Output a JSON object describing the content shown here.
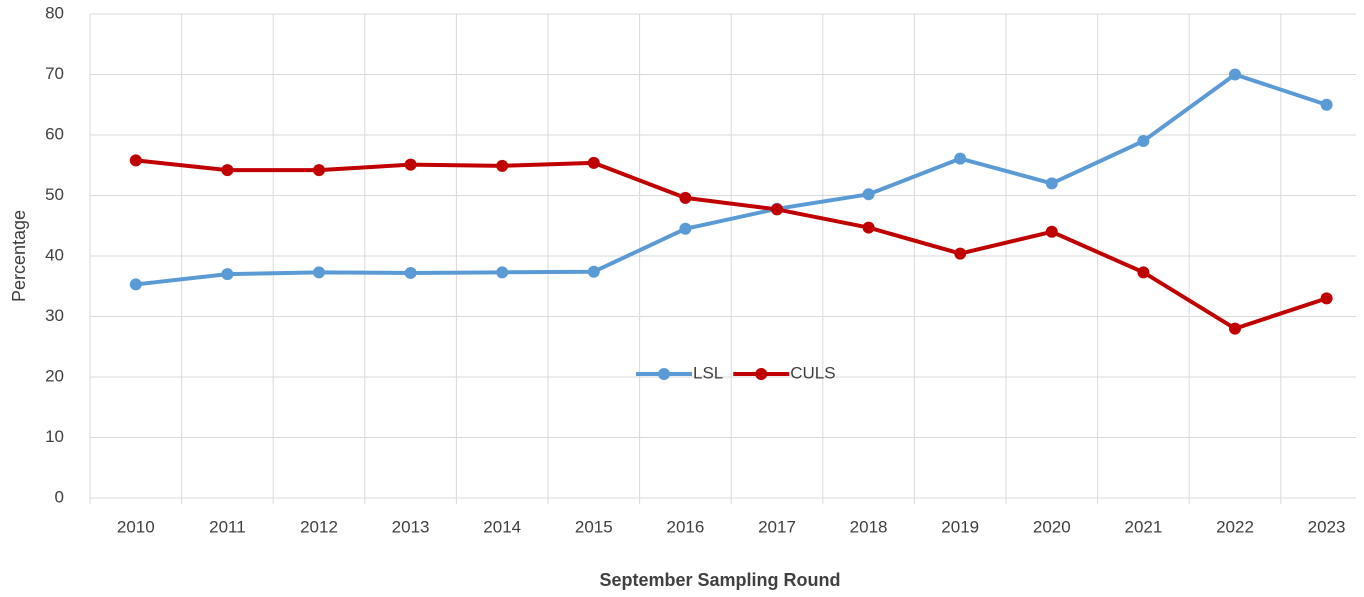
{
  "chart_data": {
    "type": "line",
    "x_label": "September Sampling Round",
    "y_label": "Percentage",
    "categories": [
      "2010",
      "2011",
      "2012",
      "2013",
      "2014",
      "2015",
      "2016",
      "2017",
      "2018",
      "2019",
      "2020",
      "2021",
      "2022",
      "2023"
    ],
    "series": [
      {
        "name": "LSL",
        "color": "#5b9bd5",
        "values": [
          35.3,
          37.0,
          37.3,
          37.2,
          37.3,
          37.4,
          44.5,
          47.8,
          50.2,
          56.1,
          52.0,
          59.0,
          70.0,
          65.0
        ]
      },
      {
        "name": "CULS",
        "color": "#c00000",
        "values": [
          55.8,
          54.2,
          54.2,
          55.1,
          54.9,
          55.4,
          49.6,
          47.7,
          44.7,
          40.4,
          44.0,
          37.3,
          28.0,
          33.0
        ]
      }
    ],
    "ylim": [
      0,
      80
    ],
    "yticks": [
      0,
      10,
      20,
      30,
      40,
      50,
      60,
      70,
      80
    ],
    "grid": true,
    "legend": "center"
  }
}
